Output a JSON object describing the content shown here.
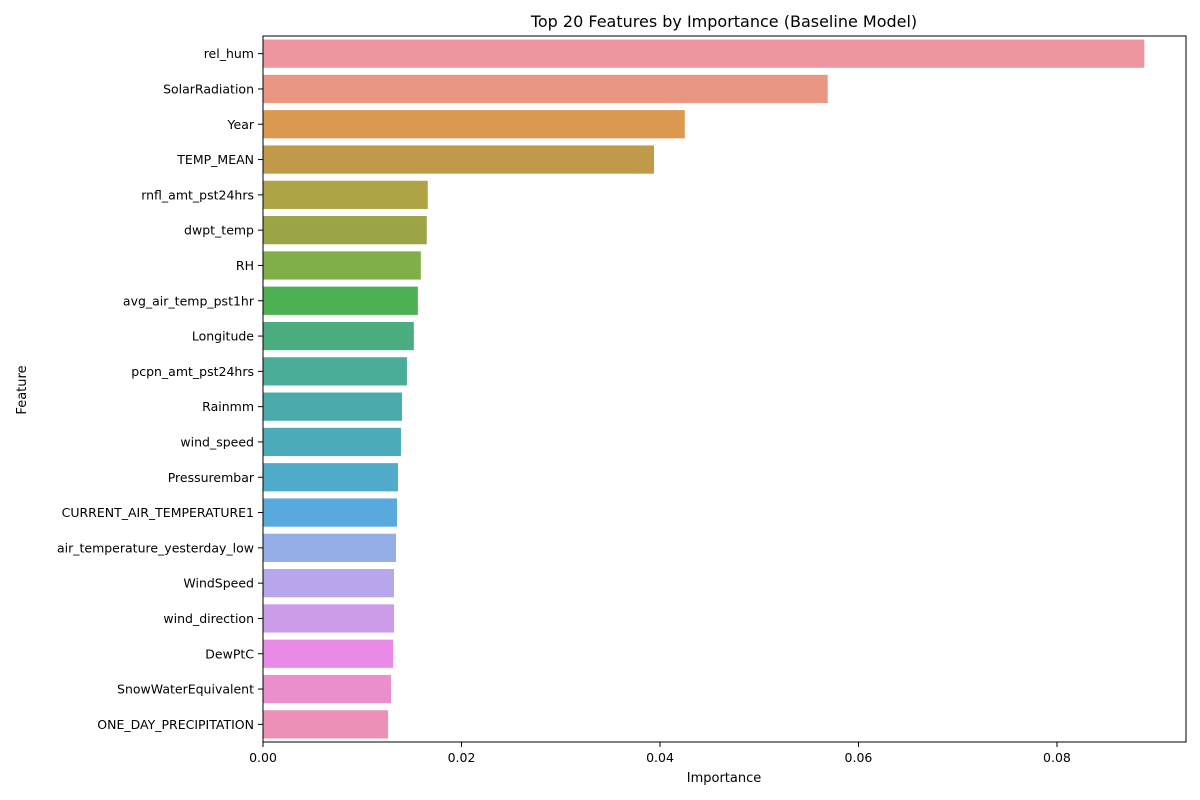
{
  "chart_data": {
    "type": "bar",
    "orientation": "horizontal",
    "title": "Top 20 Features by Importance (Baseline Model)",
    "xlabel": "Importance",
    "ylabel": "Feature",
    "xlim": [
      0,
      0.093
    ],
    "xticks": [
      0.0,
      0.02,
      0.04,
      0.06,
      0.08
    ],
    "xtick_labels": [
      "0.00",
      "0.02",
      "0.04",
      "0.06",
      "0.08"
    ],
    "grid": false,
    "categories": [
      "rel_hum",
      "SolarRadiation",
      "Year",
      "TEMP_MEAN",
      "rnfl_amt_pst24hrs",
      "dwpt_temp",
      "RH",
      "avg_air_temp_pst1hr",
      "Longitude",
      "pcpn_amt_pst24hrs",
      "Rainmm",
      "wind_speed",
      "Pressurembar",
      "CURRENT_AIR_TEMPERATURE1",
      "air_temperature_yesterday_low",
      "WindSpeed",
      "wind_direction",
      "DewPtC",
      "SnowWaterEquivalent",
      "ONE_DAY_PRECIPITATION"
    ],
    "values": [
      0.0888,
      0.0569,
      0.0425,
      0.0394,
      0.0166,
      0.0165,
      0.0159,
      0.0156,
      0.0152,
      0.0145,
      0.014,
      0.0139,
      0.0136,
      0.0135,
      0.0134,
      0.0132,
      0.0132,
      0.0131,
      0.0129,
      0.0126
    ],
    "colors": [
      "#ee96a0",
      "#e99782",
      "#db9850",
      "#c09a48",
      "#aea446",
      "#9ca546",
      "#80ae48",
      "#4caf52",
      "#4aad80",
      "#4aad98",
      "#4babaa",
      "#4cabba",
      "#50aac9",
      "#58aadd",
      "#94aee8",
      "#b6a6ec",
      "#cd9ce9",
      "#e88ae6",
      "#ea8ecc",
      "#ec90b6"
    ]
  }
}
